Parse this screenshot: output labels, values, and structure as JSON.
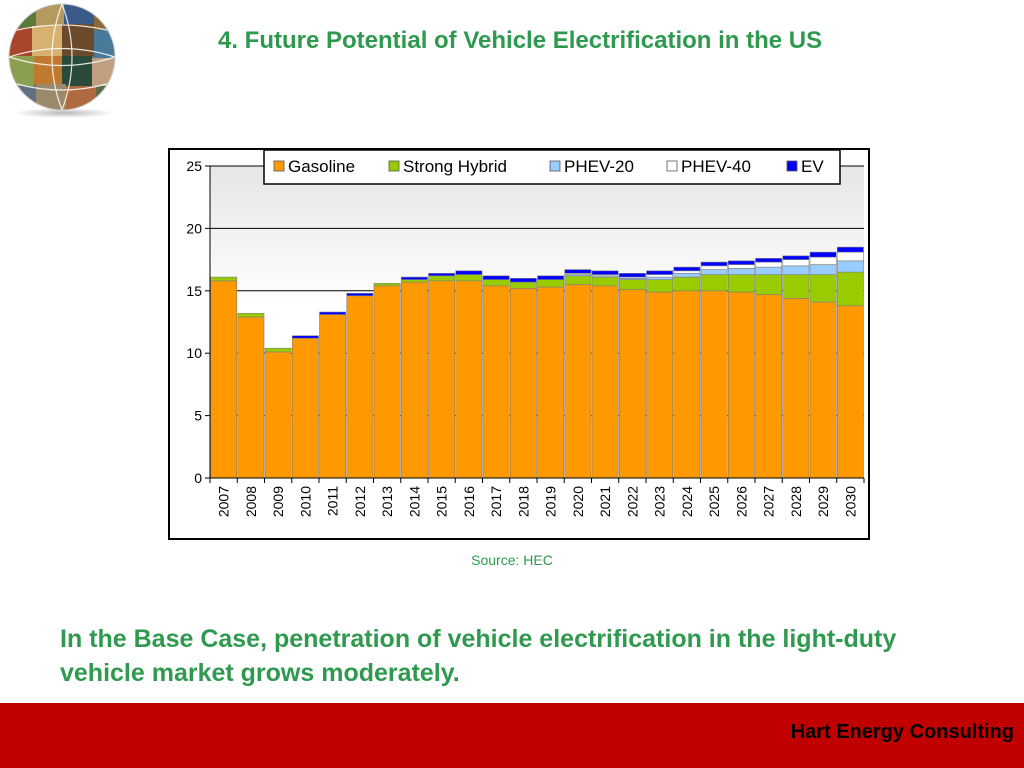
{
  "slide": {
    "title": "4. Future Potential of Vehicle Electrification in the US",
    "source": "Source: HEC",
    "body": "In the Base Case, penetration of vehicle electrification in the light-duty vehicle market grows moderately.",
    "footer": "Hart Energy Consulting"
  },
  "colors": {
    "title": "#2f9a4f",
    "footer_bar": "#c00000",
    "gasoline": "#ff9900",
    "strong_hybrid": "#99cc00",
    "phev20": "#99ccff",
    "phev40": "#ffffff",
    "ev": "#0000ff"
  },
  "chart_data": {
    "type": "bar",
    "stacked": true,
    "title": "",
    "xlabel": "",
    "ylabel": "",
    "ylim": [
      0,
      25
    ],
    "yticks": [
      0,
      5,
      10,
      15,
      20,
      25
    ],
    "grid": true,
    "legend_position": "top",
    "categories": [
      "2007",
      "2008",
      "2009",
      "2010",
      "2011",
      "2012",
      "2013",
      "2014",
      "2015",
      "2016",
      "2017",
      "2018",
      "2019",
      "2020",
      "2021",
      "2022",
      "2023",
      "2024",
      "2025",
      "2026",
      "2027",
      "2028",
      "2029",
      "2030"
    ],
    "series": [
      {
        "name": "Gasoline",
        "color": "#ff9900",
        "values": [
          15.8,
          12.9,
          10.1,
          11.2,
          13.1,
          14.6,
          15.4,
          15.7,
          15.8,
          15.8,
          15.4,
          15.2,
          15.3,
          15.5,
          15.4,
          15.1,
          14.9,
          15.0,
          15.0,
          14.9,
          14.7,
          14.4,
          14.1,
          13.8
        ]
      },
      {
        "name": "Strong Hybrid",
        "color": "#99cc00",
        "values": [
          0.3,
          0.3,
          0.3,
          0.0,
          0.0,
          0.0,
          0.2,
          0.2,
          0.4,
          0.5,
          0.5,
          0.5,
          0.6,
          0.7,
          0.7,
          0.8,
          1.0,
          1.1,
          1.3,
          1.4,
          1.6,
          1.9,
          2.2,
          2.7
        ]
      },
      {
        "name": "PHEV-20",
        "color": "#99ccff",
        "values": [
          0.0,
          0.0,
          0.0,
          0.0,
          0.0,
          0.0,
          0.0,
          0.0,
          0.0,
          0.0,
          0.0,
          0.0,
          0.0,
          0.1,
          0.1,
          0.1,
          0.2,
          0.3,
          0.4,
          0.5,
          0.6,
          0.7,
          0.8,
          0.9
        ]
      },
      {
        "name": "PHEV-40",
        "color": "#ffffff",
        "values": [
          0.0,
          0.0,
          0.0,
          0.0,
          0.0,
          0.0,
          0.0,
          0.0,
          0.0,
          0.0,
          0.0,
          0.0,
          0.0,
          0.1,
          0.1,
          0.1,
          0.2,
          0.2,
          0.3,
          0.3,
          0.4,
          0.5,
          0.6,
          0.7
        ]
      },
      {
        "name": "EV",
        "color": "#0000ff",
        "values": [
          0.0,
          0.0,
          0.0,
          0.2,
          0.2,
          0.2,
          0.0,
          0.2,
          0.2,
          0.3,
          0.3,
          0.3,
          0.3,
          0.3,
          0.3,
          0.3,
          0.3,
          0.3,
          0.3,
          0.3,
          0.3,
          0.3,
          0.4,
          0.4
        ]
      }
    ]
  }
}
